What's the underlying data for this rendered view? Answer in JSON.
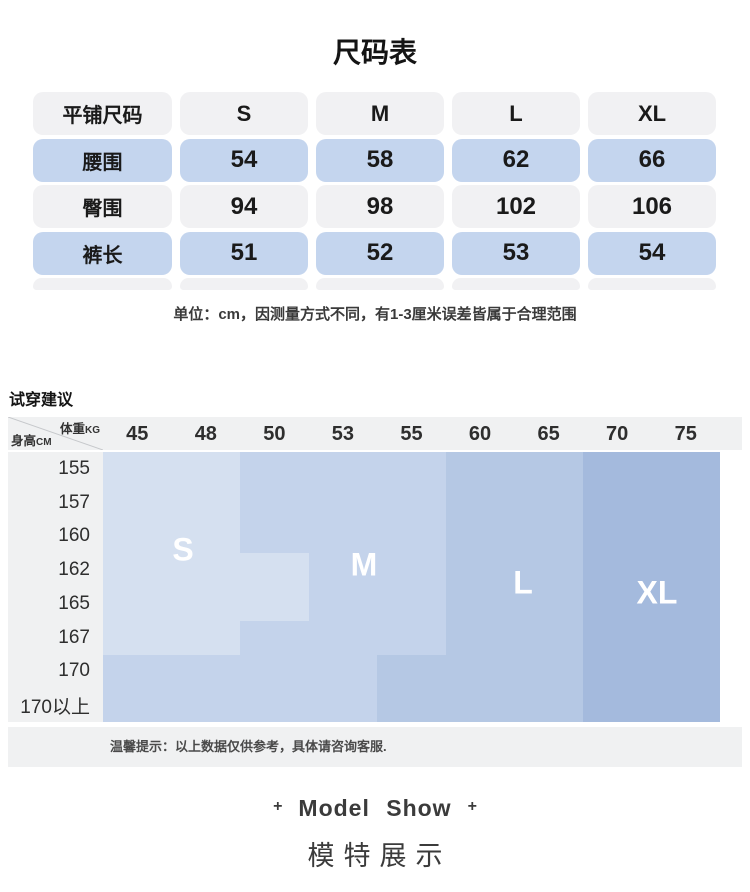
{
  "page_title": "尺码表",
  "size_table": {
    "header": [
      "平铺尺码",
      "S",
      "M",
      "L",
      "XL"
    ],
    "rows": [
      {
        "label": "腰围",
        "values": [
          "54",
          "58",
          "62",
          "66"
        ]
      },
      {
        "label": "臀围",
        "values": [
          "94",
          "98",
          "102",
          "106"
        ]
      },
      {
        "label": "裤长",
        "values": [
          "51",
          "52",
          "53",
          "54"
        ]
      }
    ],
    "unit_note": "单位：cm，因测量方式不同，有1-3厘米误差皆属于合理范围"
  },
  "fit_section": {
    "title": "试穿建议",
    "corner": {
      "weight_label": "体重",
      "weight_unit": "KG",
      "height_label": "身高",
      "height_unit": "CM"
    },
    "tip": "温馨提示：以上数据仅供参考，具体请咨询客服."
  },
  "chart_data": {
    "type": "heatmap",
    "title": "试穿建议",
    "x_label": "体重KG",
    "y_label": "身高CM",
    "x": [
      "45",
      "48",
      "50",
      "53",
      "55",
      "60",
      "65",
      "70",
      "75"
    ],
    "y": [
      "155",
      "157",
      "160",
      "162",
      "165",
      "167",
      "170",
      "170以上"
    ],
    "grid": {
      "cols": 9,
      "rows": 8
    },
    "legend_position": "in-zone-labels",
    "zones": [
      {
        "label": "S",
        "color": "#d5e0f0",
        "rects": [
          {
            "col": 0,
            "row": 0,
            "colspan": 2,
            "rowspan": 6
          },
          {
            "col": 2,
            "row": 3,
            "colspan": 1,
            "rowspan": 2
          }
        ],
        "label_x": 80,
        "label_y": 98
      },
      {
        "label": "M",
        "color": "#c4d3eb",
        "rects": [
          {
            "col": 2,
            "row": 0,
            "colspan": 3,
            "rowspan": 6
          },
          {
            "col": 0,
            "row": 6,
            "colspan": 4,
            "rowspan": 2
          }
        ],
        "label_x": 261,
        "label_y": 113
      },
      {
        "label": "L",
        "color": "#b5c8e4",
        "rects": [
          {
            "col": 5,
            "row": 0,
            "colspan": 2,
            "rowspan": 6
          },
          {
            "col": 4,
            "row": 6,
            "colspan": 3,
            "rowspan": 2
          }
        ],
        "label_x": 420,
        "label_y": 131
      },
      {
        "label": "XL",
        "color": "#a4badd",
        "rects": [
          {
            "col": 7,
            "row": 0,
            "colspan": 2,
            "rowspan": 8
          }
        ],
        "label_x": 554,
        "label_y": 141
      }
    ]
  },
  "model_show": {
    "plus_left": "+",
    "title": "Model Show",
    "plus_right": "+",
    "subtitle": "模特展示"
  }
}
